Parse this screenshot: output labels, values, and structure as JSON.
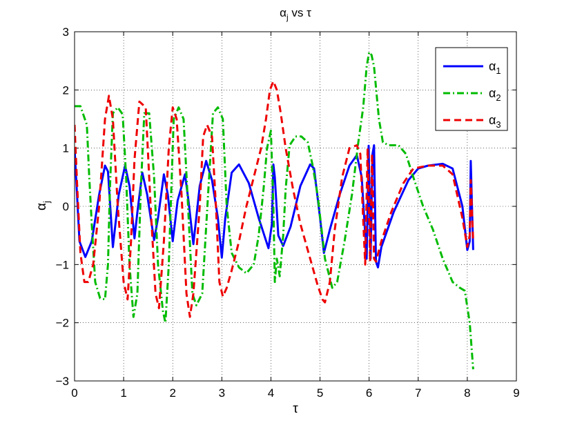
{
  "chart_data": {
    "type": "line",
    "title": "α_j vs τ",
    "title_parts": {
      "main": "α",
      "sub": "j",
      "rest": " vs τ"
    },
    "xlabel": "τ",
    "ylabel_parts": {
      "main": "α",
      "sub": "j"
    },
    "xlim": [
      0,
      9
    ],
    "ylim": [
      -3,
      3
    ],
    "xticks": [
      0,
      1,
      2,
      3,
      4,
      5,
      6,
      7,
      8,
      9
    ],
    "yticks": [
      -3,
      -2,
      -1,
      0,
      1,
      2,
      3
    ],
    "xtick_labels": [
      "0",
      "1",
      "2",
      "3",
      "4",
      "5",
      "6",
      "7",
      "8",
      "9"
    ],
    "ytick_labels": [
      "−3",
      "−2",
      "−1",
      "0",
      "1",
      "2",
      "3"
    ],
    "grid": true,
    "legend_position": "top-right",
    "series": [
      {
        "name": "α_1",
        "name_parts": {
          "main": "α",
          "sub": "1"
        },
        "color": "#0000ff",
        "style": "solid",
        "points": [
          [
            0,
            1.0
          ],
          [
            0.1,
            -0.6
          ],
          [
            0.22,
            -0.87
          ],
          [
            0.35,
            -0.6
          ],
          [
            0.5,
            0.2
          ],
          [
            0.62,
            0.7
          ],
          [
            0.68,
            0.6
          ],
          [
            0.78,
            -0.7
          ],
          [
            0.9,
            0.2
          ],
          [
            1.03,
            0.7
          ],
          [
            1.12,
            0.35
          ],
          [
            1.22,
            -0.55
          ],
          [
            1.28,
            -0.1
          ],
          [
            1.38,
            0.58
          ],
          [
            1.48,
            0.2
          ],
          [
            1.62,
            -0.58
          ],
          [
            1.7,
            -0.2
          ],
          [
            1.82,
            0.55
          ],
          [
            1.9,
            0.2
          ],
          [
            2.0,
            -0.6
          ],
          [
            2.1,
            0.1
          ],
          [
            2.25,
            0.55
          ],
          [
            2.32,
            0.1
          ],
          [
            2.42,
            -0.65
          ],
          [
            2.55,
            0.35
          ],
          [
            2.68,
            0.78
          ],
          [
            2.8,
            0.45
          ],
          [
            2.92,
            -0.2
          ],
          [
            3.0,
            -0.88
          ],
          [
            3.07,
            -0.2
          ],
          [
            3.2,
            0.58
          ],
          [
            3.35,
            0.72
          ],
          [
            3.55,
            0.4
          ],
          [
            3.75,
            -0.2
          ],
          [
            3.95,
            -0.72
          ],
          [
            4.02,
            -0.3
          ],
          [
            4.05,
            0.72
          ],
          [
            4.08,
            0.5
          ],
          [
            4.15,
            -0.5
          ],
          [
            4.25,
            -0.68
          ],
          [
            4.4,
            -0.35
          ],
          [
            4.6,
            0.35
          ],
          [
            4.8,
            0.72
          ],
          [
            4.88,
            0.65
          ],
          [
            5.0,
            -0.2
          ],
          [
            5.08,
            -0.8
          ],
          [
            5.2,
            -0.4
          ],
          [
            5.4,
            0.2
          ],
          [
            5.6,
            0.7
          ],
          [
            5.75,
            0.88
          ],
          [
            5.85,
            0.5
          ],
          [
            5.95,
            -0.9
          ],
          [
            5.99,
            1.04
          ],
          [
            6.03,
            -0.9
          ],
          [
            6.07,
            0.9
          ],
          [
            6.1,
            1.05
          ],
          [
            6.14,
            -0.95
          ],
          [
            6.18,
            -1.05
          ],
          [
            6.25,
            -0.7
          ],
          [
            6.5,
            -0.1
          ],
          [
            6.8,
            0.45
          ],
          [
            7.0,
            0.65
          ],
          [
            7.2,
            0.7
          ],
          [
            7.5,
            0.73
          ],
          [
            7.7,
            0.65
          ],
          [
            7.9,
            0.0
          ],
          [
            8.0,
            -0.75
          ],
          [
            8.05,
            -0.6
          ],
          [
            8.07,
            0.78
          ],
          [
            8.12,
            -0.75
          ]
        ]
      },
      {
        "name": "α_2",
        "name_parts": {
          "main": "α",
          "sub": "2"
        },
        "color": "#00bb00",
        "style": "dashdot",
        "points": [
          [
            0,
            1.72
          ],
          [
            0.12,
            1.72
          ],
          [
            0.25,
            1.4
          ],
          [
            0.3,
            0.5
          ],
          [
            0.35,
            -0.3
          ],
          [
            0.42,
            -1.3
          ],
          [
            0.52,
            -1.58
          ],
          [
            0.62,
            -1.6
          ],
          [
            0.68,
            -1.0
          ],
          [
            0.72,
            0.3
          ],
          [
            0.78,
            1.6
          ],
          [
            0.88,
            1.7
          ],
          [
            0.98,
            1.58
          ],
          [
            1.05,
            0.5
          ],
          [
            1.12,
            -1.0
          ],
          [
            1.2,
            -1.9
          ],
          [
            1.28,
            -1.5
          ],
          [
            1.35,
            0.3
          ],
          [
            1.42,
            1.6
          ],
          [
            1.52,
            1.6
          ],
          [
            1.62,
            0.5
          ],
          [
            1.7,
            -1.0
          ],
          [
            1.8,
            -1.8
          ],
          [
            1.85,
            -2.0
          ],
          [
            1.92,
            -1.0
          ],
          [
            2.02,
            1.5
          ],
          [
            2.12,
            1.7
          ],
          [
            2.22,
            1.5
          ],
          [
            2.3,
            0.2
          ],
          [
            2.4,
            -1.5
          ],
          [
            2.48,
            -1.7
          ],
          [
            2.6,
            -1.5
          ],
          [
            2.72,
            0.2
          ],
          [
            2.82,
            1.6
          ],
          [
            2.92,
            1.7
          ],
          [
            3.02,
            1.5
          ],
          [
            3.1,
            0.0
          ],
          [
            3.2,
            -0.8
          ],
          [
            3.35,
            -1.05
          ],
          [
            3.5,
            -1.15
          ],
          [
            3.65,
            -1.0
          ],
          [
            3.75,
            -0.5
          ],
          [
            3.85,
            0.3
          ],
          [
            3.92,
            1.0
          ],
          [
            4.0,
            1.3
          ],
          [
            4.05,
            0.0
          ],
          [
            4.08,
            -1.3
          ],
          [
            4.12,
            -0.9
          ],
          [
            4.18,
            -1.2
          ],
          [
            4.25,
            -0.5
          ],
          [
            4.3,
            0.3
          ],
          [
            4.38,
            1.05
          ],
          [
            4.5,
            1.2
          ],
          [
            4.62,
            1.2
          ],
          [
            4.75,
            1.1
          ],
          [
            4.85,
            0.7
          ],
          [
            4.95,
            0.2
          ],
          [
            5.1,
            -0.9
          ],
          [
            5.25,
            -1.4
          ],
          [
            5.35,
            -1.3
          ],
          [
            5.5,
            -0.6
          ],
          [
            5.65,
            0.2
          ],
          [
            5.78,
            1.1
          ],
          [
            5.88,
            1.7
          ],
          [
            5.95,
            2.4
          ],
          [
            6.0,
            2.65
          ],
          [
            6.05,
            2.6
          ],
          [
            6.1,
            2.4
          ],
          [
            6.2,
            1.5
          ],
          [
            6.28,
            1.1
          ],
          [
            6.4,
            1.05
          ],
          [
            6.6,
            1.05
          ],
          [
            6.75,
            0.9
          ],
          [
            6.9,
            0.5
          ],
          [
            7.1,
            0.0
          ],
          [
            7.3,
            -0.4
          ],
          [
            7.5,
            -0.9
          ],
          [
            7.7,
            -1.3
          ],
          [
            7.85,
            -1.4
          ],
          [
            7.95,
            -1.45
          ],
          [
            8.05,
            -2.0
          ],
          [
            8.12,
            -2.8
          ]
        ]
      },
      {
        "name": "α_3",
        "name_parts": {
          "main": "α",
          "sub": "3"
        },
        "color": "#ee0000",
        "style": "dashed",
        "points": [
          [
            0,
            1.4
          ],
          [
            0.05,
            0.4
          ],
          [
            0.12,
            -0.8
          ],
          [
            0.2,
            -1.3
          ],
          [
            0.28,
            -1.3
          ],
          [
            0.38,
            -1.0
          ],
          [
            0.5,
            0.0
          ],
          [
            0.62,
            1.5
          ],
          [
            0.7,
            1.9
          ],
          [
            0.78,
            1.5
          ],
          [
            0.88,
            0.0
          ],
          [
            1.0,
            -1.3
          ],
          [
            1.08,
            -1.6
          ],
          [
            1.15,
            -0.6
          ],
          [
            1.22,
            0.8
          ],
          [
            1.32,
            1.8
          ],
          [
            1.45,
            1.7
          ],
          [
            1.55,
            0.0
          ],
          [
            1.65,
            -1.5
          ],
          [
            1.72,
            -1.75
          ],
          [
            1.82,
            -0.6
          ],
          [
            1.92,
            1.0
          ],
          [
            2.0,
            1.7
          ],
          [
            2.08,
            1.5
          ],
          [
            2.18,
            0.2
          ],
          [
            2.28,
            -1.5
          ],
          [
            2.35,
            -1.9
          ],
          [
            2.42,
            -1.5
          ],
          [
            2.55,
            0.0
          ],
          [
            2.62,
            1.2
          ],
          [
            2.7,
            1.4
          ],
          [
            2.8,
            1.2
          ],
          [
            2.88,
            0.0
          ],
          [
            2.95,
            -1.3
          ],
          [
            3.02,
            -1.55
          ],
          [
            3.1,
            -1.4
          ],
          [
            3.2,
            -1.1
          ],
          [
            3.35,
            -0.6
          ],
          [
            3.5,
            0.0
          ],
          [
            3.65,
            0.5
          ],
          [
            3.8,
            1.0
          ],
          [
            3.9,
            1.5
          ],
          [
            3.98,
            2.0
          ],
          [
            4.05,
            2.15
          ],
          [
            4.12,
            2.0
          ],
          [
            4.2,
            1.6
          ],
          [
            4.3,
            1.0
          ],
          [
            4.45,
            0.3
          ],
          [
            4.6,
            -0.3
          ],
          [
            4.8,
            -0.9
          ],
          [
            4.95,
            -1.35
          ],
          [
            5.05,
            -1.6
          ],
          [
            5.1,
            -1.65
          ],
          [
            5.2,
            -1.3
          ],
          [
            5.3,
            -0.4
          ],
          [
            5.45,
            0.5
          ],
          [
            5.6,
            1.0
          ],
          [
            5.75,
            1.05
          ],
          [
            5.82,
            0.9
          ],
          [
            5.92,
            -1.0
          ],
          [
            5.97,
            1.0
          ],
          [
            6.02,
            -0.95
          ],
          [
            6.06,
            0.9
          ],
          [
            6.1,
            -0.9
          ],
          [
            6.14,
            -0.95
          ],
          [
            6.25,
            -0.6
          ],
          [
            6.45,
            -0.1
          ],
          [
            6.7,
            0.4
          ],
          [
            6.9,
            0.65
          ],
          [
            7.2,
            0.7
          ],
          [
            7.5,
            0.7
          ],
          [
            7.7,
            0.55
          ],
          [
            7.9,
            -0.2
          ],
          [
            8.0,
            -0.7
          ],
          [
            8.05,
            -0.5
          ],
          [
            8.07,
            0.45
          ],
          [
            8.12,
            -0.6
          ]
        ]
      }
    ]
  }
}
